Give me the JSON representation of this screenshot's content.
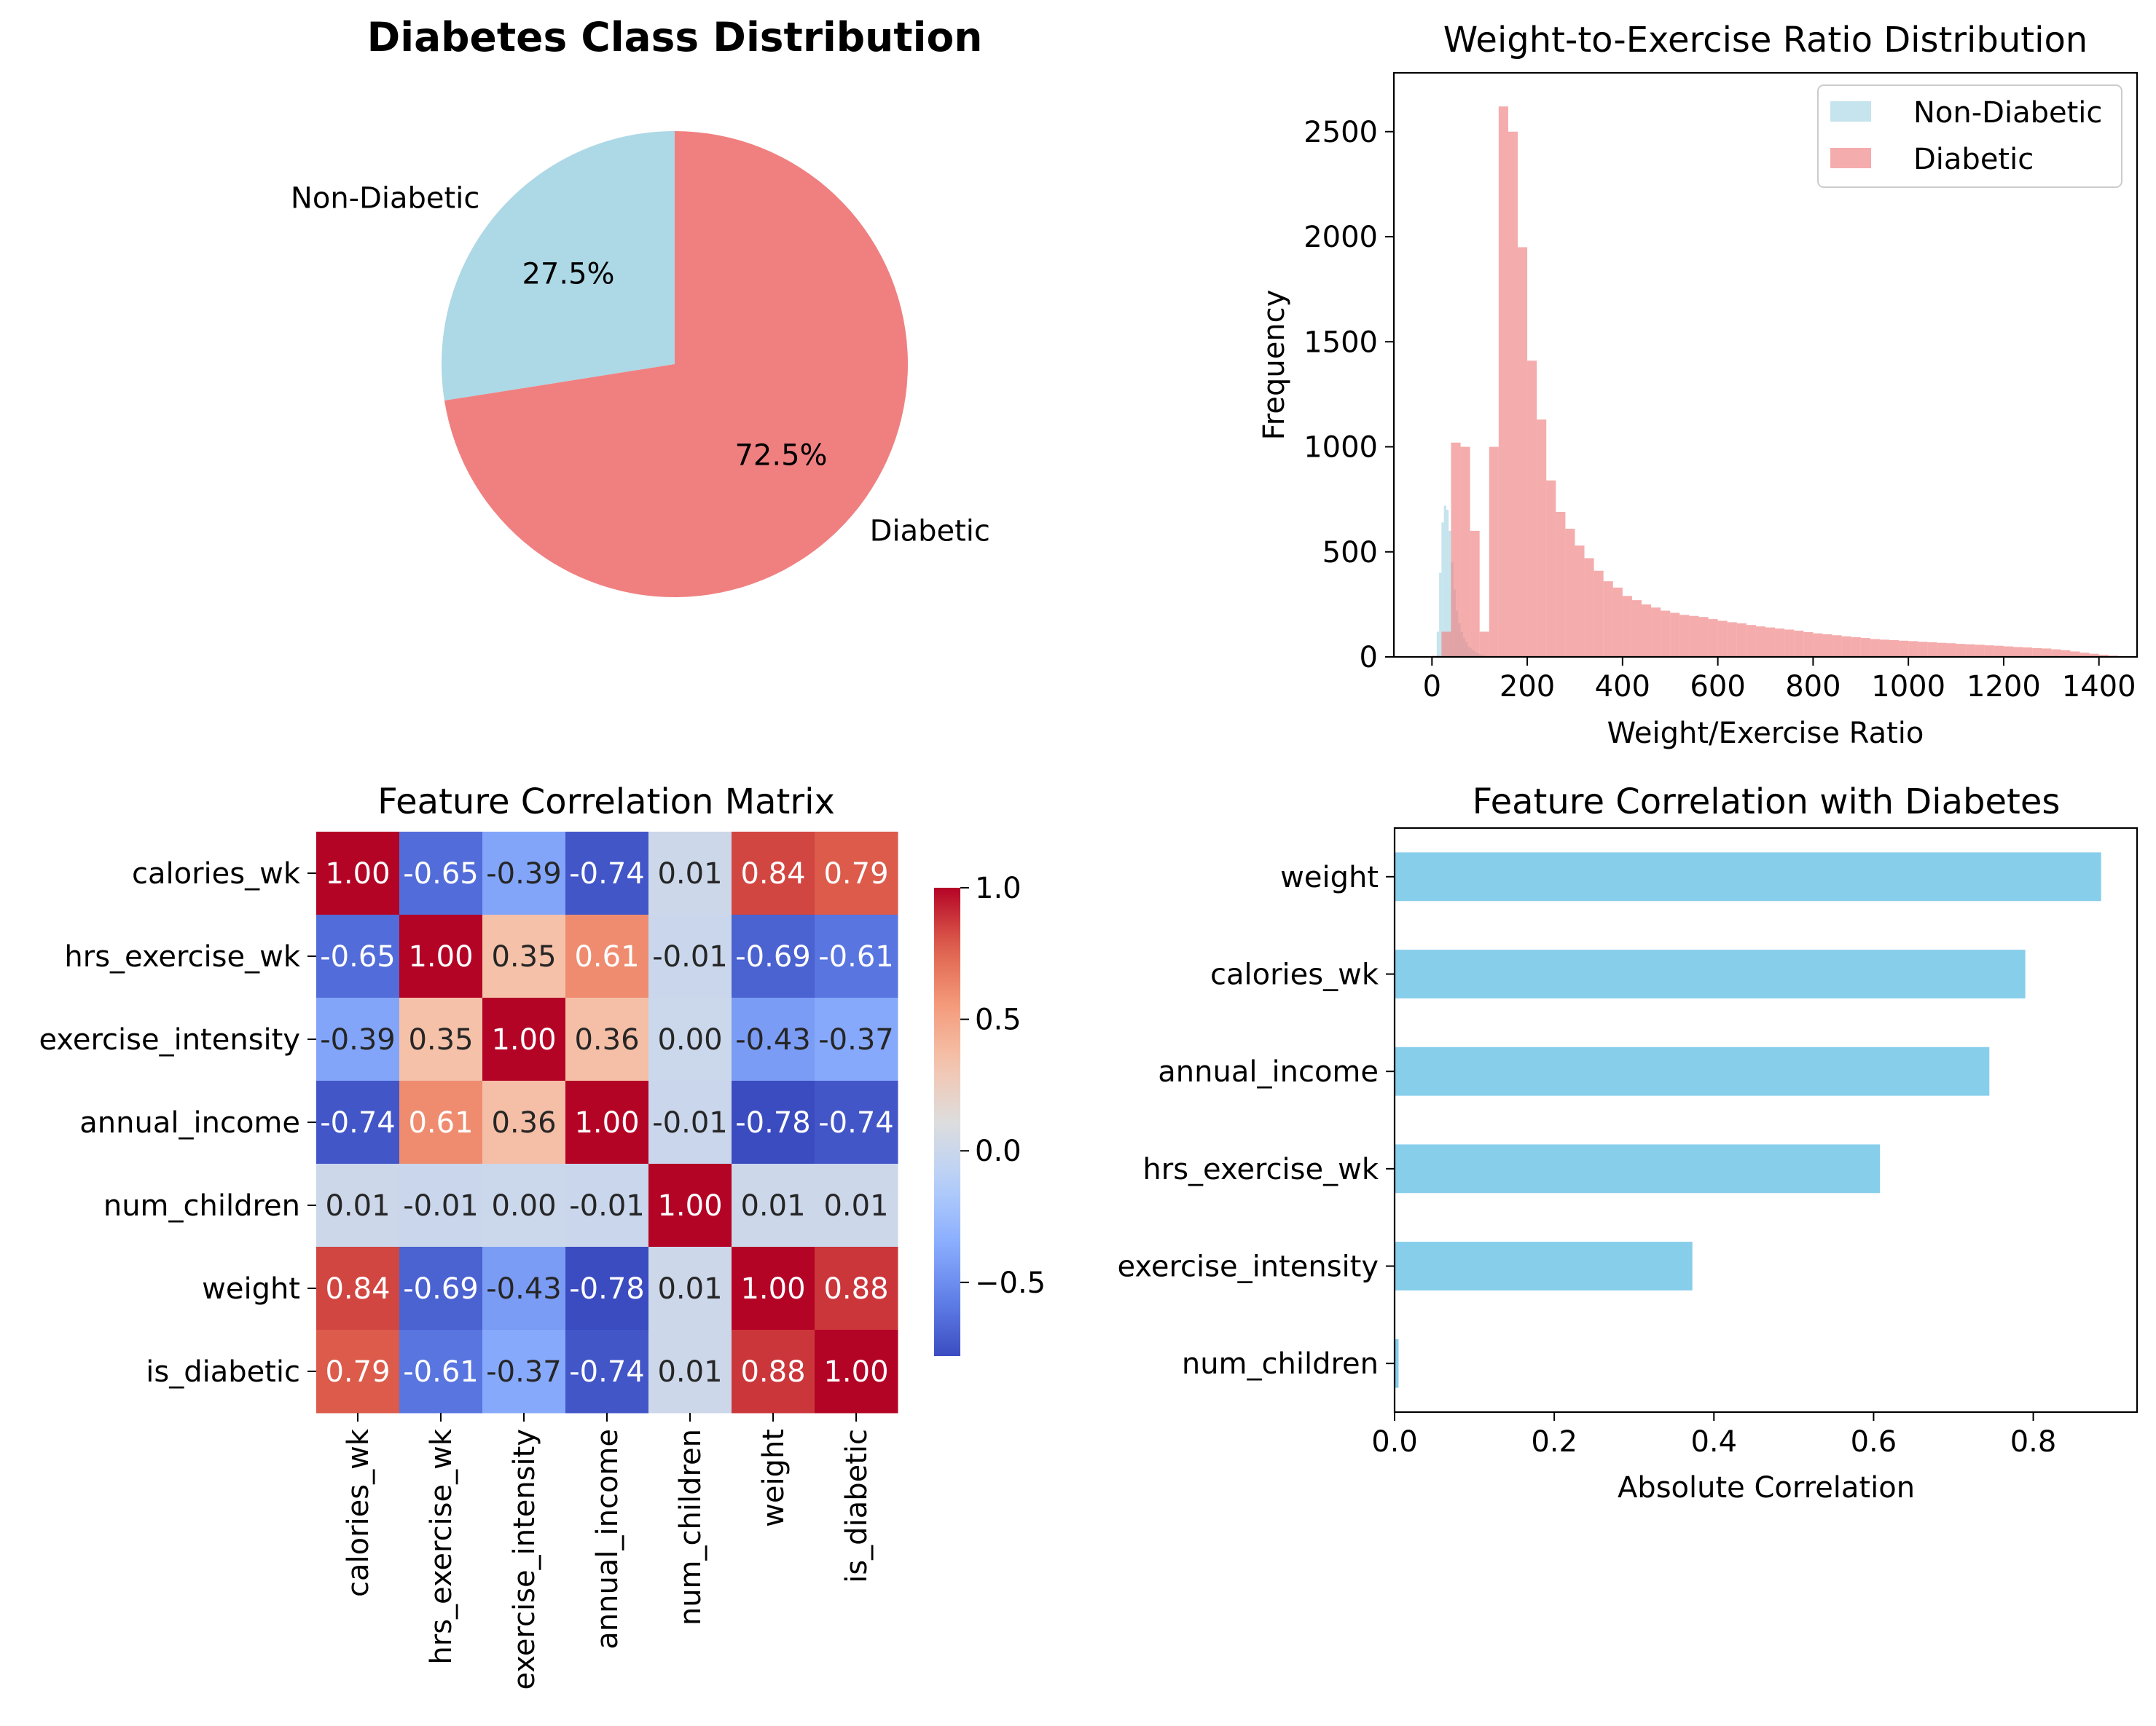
{
  "pie": {
    "title": "Diabetes Class Distribution",
    "chart_data": {
      "type": "pie",
      "title": "Diabetes Class Distribution",
      "slices": [
        {
          "label": "Non-Diabetic",
          "value": 27.5,
          "pct_label": "27.5%",
          "color": "#add8e6"
        },
        {
          "label": "Diabetic",
          "value": 72.5,
          "pct_label": "72.5%",
          "color": "#f08080"
        }
      ]
    }
  },
  "hist": {
    "title": "Weight-to-Exercise Ratio Distribution",
    "xlabel": "Weight/Exercise Ratio",
    "ylabel": "Frequency",
    "legend": [
      {
        "label": "Non-Diabetic",
        "color": "#add8e6"
      },
      {
        "label": "Diabetic",
        "color": "#f08080"
      }
    ],
    "chart_data": {
      "type": "bar",
      "title": "Weight-to-Exercise Ratio Distribution",
      "xlabel": "Weight/Exercise Ratio",
      "ylabel": "Frequency",
      "xlim": [
        -80,
        1480
      ],
      "ylim": [
        0,
        2780
      ],
      "xticks": [
        0,
        200,
        400,
        600,
        800,
        1000,
        1200,
        1400
      ],
      "yticks": [
        0,
        500,
        1000,
        1500,
        2000,
        2500
      ],
      "legend_position": "top-right",
      "series": [
        {
          "name": "Non-Diabetic",
          "color": "#add8e6",
          "opacity": 0.7,
          "bin_edges": [
            10,
            15,
            20,
            25,
            30,
            35,
            40,
            45,
            50,
            55,
            60,
            65,
            70,
            75,
            80,
            85,
            90,
            95,
            100,
            105,
            110,
            115,
            120
          ],
          "counts": [
            120,
            400,
            640,
            720,
            700,
            600,
            450,
            320,
            220,
            160,
            120,
            90,
            70,
            50,
            40,
            30,
            22,
            16,
            12,
            8,
            5,
            3
          ]
        },
        {
          "name": "Diabetic",
          "color": "#f08080",
          "opacity": 0.65,
          "bin_edges": [
            0,
            20,
            40,
            60,
            80,
            100,
            120,
            140,
            160,
            180,
            200,
            220,
            240,
            260,
            280,
            300,
            320,
            340,
            360,
            380,
            400,
            420,
            440,
            460,
            480,
            500,
            520,
            540,
            560,
            580,
            600,
            620,
            640,
            660,
            680,
            700,
            720,
            740,
            760,
            780,
            800,
            820,
            840,
            860,
            880,
            900,
            920,
            940,
            960,
            980,
            1000,
            1020,
            1040,
            1060,
            1080,
            1100,
            1120,
            1140,
            1160,
            1180,
            1200,
            1220,
            1240,
            1260,
            1280,
            1300,
            1320,
            1340,
            1360,
            1380,
            1400,
            1420,
            1440
          ],
          "counts": [
            5,
            120,
            1020,
            1000,
            600,
            120,
            1000,
            2620,
            2500,
            1950,
            1410,
            1130,
            840,
            690,
            610,
            530,
            470,
            410,
            360,
            330,
            290,
            270,
            250,
            235,
            220,
            210,
            200,
            195,
            190,
            180,
            172,
            165,
            160,
            152,
            145,
            140,
            135,
            130,
            125,
            118,
            112,
            108,
            103,
            98,
            94,
            90,
            85,
            82,
            80,
            77,
            75,
            72,
            70,
            67,
            65,
            62,
            60,
            58,
            55,
            53,
            50,
            47,
            45,
            42,
            40,
            36,
            32,
            26,
            20,
            15,
            10,
            6
          ]
        }
      ]
    }
  },
  "heatmap": {
    "title": "Feature Correlation Matrix",
    "chart_data": {
      "type": "heatmap",
      "title": "Feature Correlation Matrix",
      "labels": [
        "calories_wk",
        "hrs_exercise_wk",
        "exercise_intensity",
        "annual_income",
        "num_children",
        "weight",
        "is_diabetic"
      ],
      "values": [
        [
          1.0,
          -0.65,
          -0.39,
          -0.74,
          0.01,
          0.84,
          0.79
        ],
        [
          -0.65,
          1.0,
          0.35,
          0.61,
          -0.01,
          -0.69,
          -0.61
        ],
        [
          -0.39,
          0.35,
          1.0,
          0.36,
          0.0,
          -0.43,
          -0.37
        ],
        [
          -0.74,
          0.61,
          0.36,
          1.0,
          -0.01,
          -0.78,
          -0.74
        ],
        [
          0.01,
          -0.01,
          0.0,
          -0.01,
          1.0,
          0.01,
          0.01
        ],
        [
          0.84,
          -0.69,
          -0.43,
          -0.78,
          0.01,
          1.0,
          0.88
        ],
        [
          0.79,
          -0.61,
          -0.37,
          -0.74,
          0.01,
          0.88,
          1.0
        ]
      ],
      "colormap": "coolwarm",
      "colorbar_range": [
        -0.78,
        1.0
      ],
      "colorbar_ticks": [
        1.0,
        0.5,
        0.0,
        -0.5
      ],
      "colorbar_tick_labels": [
        "1.0",
        "0.5",
        "0.0",
        "−0.5"
      ]
    }
  },
  "barh": {
    "title": "Feature Correlation with Diabetes",
    "xlabel": "Absolute Correlation",
    "chart_data": {
      "type": "bar",
      "orientation": "horizontal",
      "title": "Feature Correlation with Diabetes",
      "xlabel": "Absolute Correlation",
      "ylabel": "",
      "color": "#87ceeb",
      "xlim": [
        0,
        0.93
      ],
      "xticks": [
        0.0,
        0.2,
        0.4,
        0.6,
        0.8
      ],
      "categories": [
        "weight",
        "calories_wk",
        "annual_income",
        "hrs_exercise_wk",
        "exercise_intensity",
        "num_children"
      ],
      "values": [
        0.885,
        0.79,
        0.745,
        0.608,
        0.373,
        0.005
      ]
    }
  }
}
